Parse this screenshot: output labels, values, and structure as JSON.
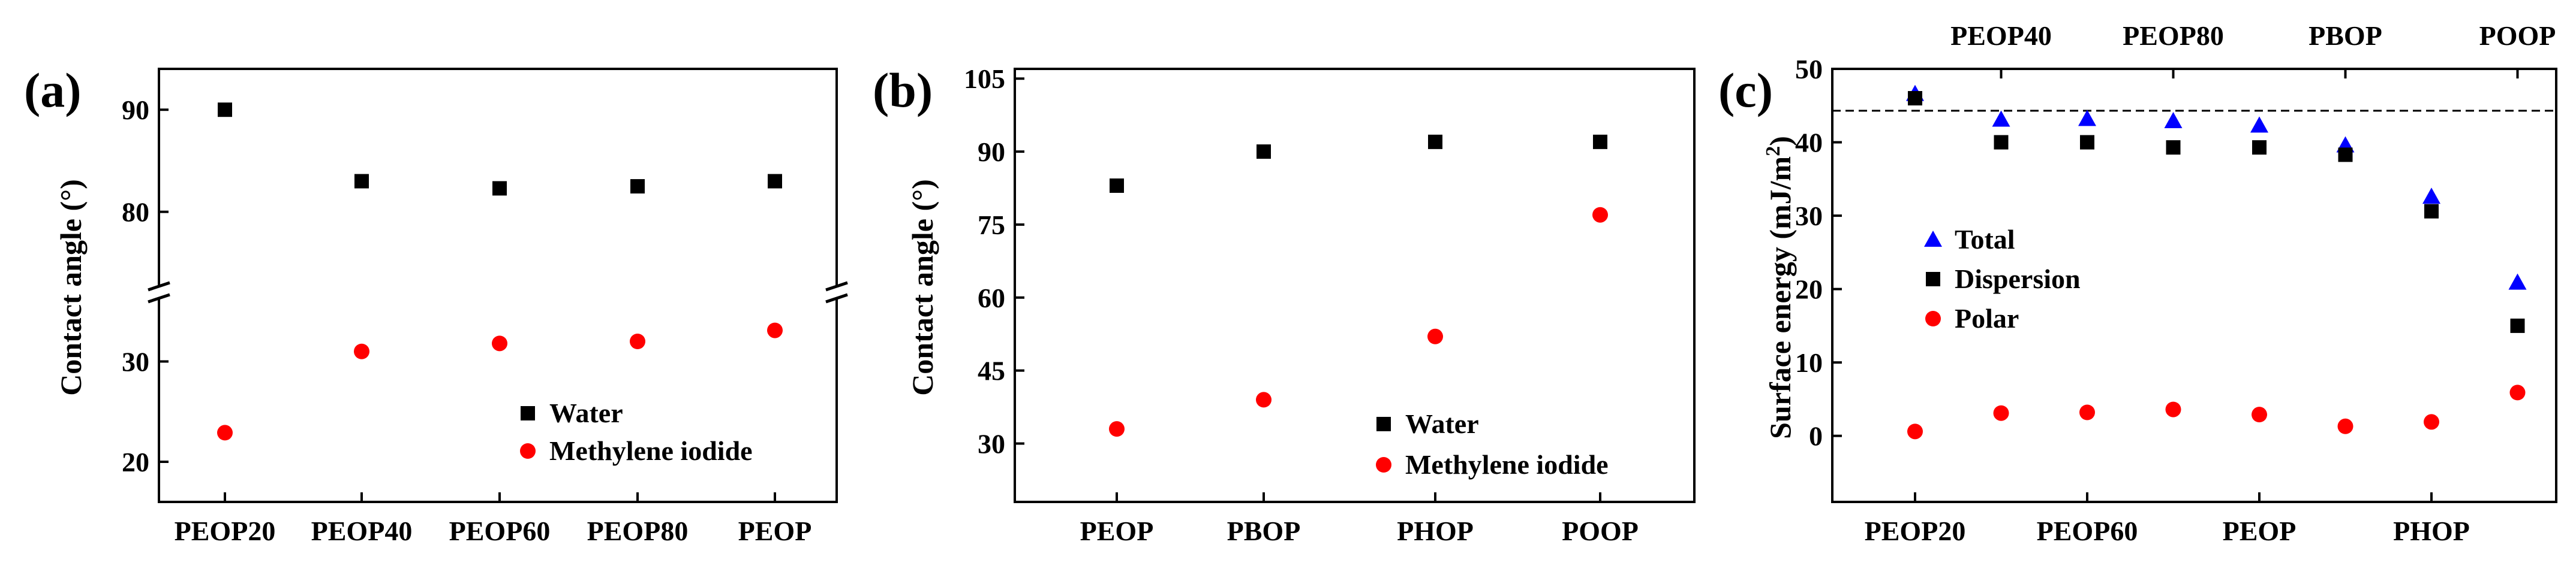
{
  "chart_data": [
    {
      "panel_label": "(a)",
      "type": "scatter",
      "ylabel": "Contact angle (°)",
      "categories": [
        "PEOP20",
        "PEOP40",
        "PEOP60",
        "PEOP80",
        "PEOP"
      ],
      "y_break": true,
      "ylim_lower": [
        16,
        36
      ],
      "ylim_upper": [
        73,
        94
      ],
      "yticks": [
        20,
        30,
        80,
        90
      ],
      "series": [
        {
          "name": "Water",
          "marker": "square",
          "color": "#000000",
          "values": [
            90.0,
            83.0,
            82.3,
            82.5,
            83.0
          ]
        },
        {
          "name": "Methylene iodide",
          "marker": "circle",
          "color": "#ff0000",
          "values": [
            22.9,
            31.0,
            31.8,
            32.0,
            33.1
          ]
        }
      ],
      "legend": "bottom-right"
    },
    {
      "panel_label": "(b)",
      "type": "scatter",
      "ylabel": "Contact angle (°)",
      "categories": [
        "PEOP",
        "PBOP",
        "PHOP",
        "POOP"
      ],
      "ylim": [
        18,
        107
      ],
      "yticks": [
        30,
        45,
        60,
        75,
        90,
        105
      ],
      "series": [
        {
          "name": "Water",
          "marker": "square",
          "color": "#000000",
          "values": [
            83,
            90,
            92,
            92
          ]
        },
        {
          "name": "Methylene iodide",
          "marker": "circle",
          "color": "#ff0000",
          "values": [
            33,
            39,
            52,
            77
          ]
        }
      ],
      "legend": "bottom-right"
    },
    {
      "panel_label": "(c)",
      "type": "scatter",
      "ylabel": "Surface energy (mJ/m²)",
      "ylabel_base": "Surface energy (mJ/m",
      "ylabel_sup": "2",
      "ylabel_tail": ")",
      "x": [
        0,
        1,
        2,
        3,
        4,
        5,
        6,
        7
      ],
      "bottom_tick_labels": [
        {
          "x": 0,
          "label": "PEOP20"
        },
        {
          "x": 2,
          "label": "PEOP60"
        },
        {
          "x": 4,
          "label": "PEOP"
        },
        {
          "x": 6,
          "label": "PHOP"
        }
      ],
      "top_tick_labels": [
        {
          "x": 1,
          "label": "PEOP40"
        },
        {
          "x": 3,
          "label": "PEOP80"
        },
        {
          "x": 5,
          "label": "PBOP"
        },
        {
          "x": 7,
          "label": "POOP"
        }
      ],
      "ylim": [
        -9,
        50
      ],
      "yticks": [
        0,
        10,
        20,
        30,
        40,
        50
      ],
      "reference_line": 44.3,
      "series": [
        {
          "name": "Total",
          "marker": "triangle",
          "color": "#0000ff",
          "values": [
            46.6,
            43.1,
            43.2,
            42.9,
            42.3,
            39.6,
            32.6,
            20.9
          ]
        },
        {
          "name": "Dispersion",
          "marker": "square",
          "color": "#000000",
          "values": [
            46.0,
            40.0,
            40.0,
            39.3,
            39.3,
            38.3,
            30.6,
            15.0
          ]
        },
        {
          "name": "Polar",
          "marker": "circle",
          "color": "#ff0000",
          "values": [
            0.6,
            3.1,
            3.2,
            3.6,
            2.9,
            1.3,
            1.9,
            5.9
          ]
        }
      ],
      "legend": "middle-left"
    }
  ]
}
